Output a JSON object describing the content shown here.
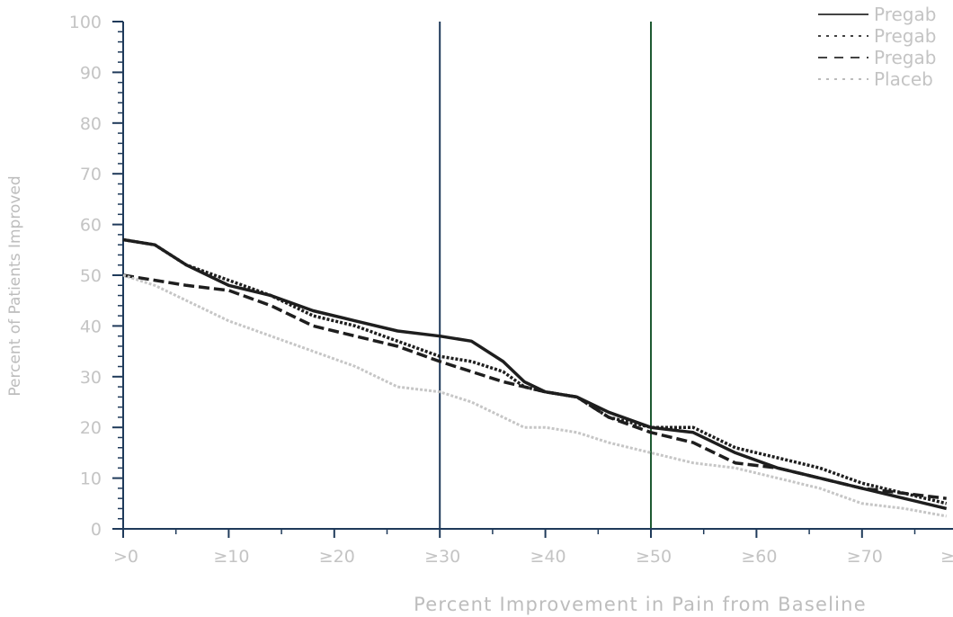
{
  "chart_data": {
    "type": "line",
    "xlabel": "Percent Improvement in Pain from Baseline",
    "ylabel": "Percent of Patients Improved",
    "xlim": [
      0,
      78
    ],
    "ylim": [
      0,
      100
    ],
    "x_ticks": [
      0,
      10,
      20,
      30,
      40,
      50,
      60,
      70,
      80
    ],
    "x_tick_labels": [
      ">0",
      "≥10",
      "≥20",
      "≥30",
      "≥40",
      "≥50",
      "≥60",
      "≥70",
      "≥"
    ],
    "x_minor_ticks": [
      5,
      15,
      25,
      35,
      45,
      55,
      65,
      75
    ],
    "y_ticks": [
      0,
      10,
      20,
      30,
      40,
      50,
      60,
      70,
      80,
      90,
      100
    ],
    "y_tick_labels": [
      "0",
      "10",
      "20",
      "30",
      "40",
      "50",
      "60",
      "70",
      "80",
      "90",
      "100"
    ],
    "y_minor_ticks": [
      2,
      4,
      6,
      8,
      12,
      14,
      16,
      18,
      22,
      24,
      26,
      28,
      32,
      34,
      36,
      38,
      42,
      44,
      46,
      48,
      52,
      54,
      56,
      58,
      62,
      64,
      66,
      68,
      72,
      74,
      76,
      78,
      82,
      84,
      86,
      88,
      92,
      94,
      96,
      98
    ],
    "reference_lines": [
      {
        "x": 30,
        "color": "#1f3a5a"
      },
      {
        "x": 50,
        "color": "#1e5a32"
      }
    ],
    "grid": false,
    "legend_position": "top-right",
    "series": [
      {
        "name": "Pregab",
        "style": "solid",
        "color": "#1e1e1e",
        "x": [
          0,
          3,
          6,
          10,
          14,
          18,
          22,
          26,
          30,
          33,
          36,
          38,
          40,
          43,
          46,
          50,
          54,
          58,
          62,
          66,
          70,
          74,
          78
        ],
        "y": [
          57,
          56,
          52,
          48,
          46,
          43,
          41,
          39,
          38,
          37,
          33,
          29,
          27,
          26,
          23,
          20,
          19,
          15,
          12,
          10,
          8,
          6,
          4
        ]
      },
      {
        "name": "Pregab",
        "style": "dotted",
        "color": "#1e1e1e",
        "x": [
          0,
          3,
          6,
          10,
          14,
          18,
          22,
          26,
          30,
          33,
          36,
          38,
          40,
          43,
          46,
          50,
          54,
          58,
          62,
          66,
          70,
          74,
          78
        ],
        "y": [
          57,
          56,
          52,
          49,
          46,
          42,
          40,
          37,
          34,
          33,
          31,
          28,
          27,
          26,
          22,
          20,
          20,
          16,
          14,
          12,
          9,
          7,
          5
        ]
      },
      {
        "name": "Pregab",
        "style": "dashed",
        "color": "#1e1e1e",
        "x": [
          0,
          3,
          6,
          10,
          14,
          18,
          22,
          26,
          30,
          33,
          36,
          38,
          40,
          43,
          46,
          50,
          54,
          58,
          62,
          66,
          70,
          74,
          78
        ],
        "y": [
          50,
          49,
          48,
          47,
          44,
          40,
          38,
          36,
          33,
          31,
          29,
          28,
          27,
          26,
          22,
          19,
          17,
          13,
          12,
          10,
          8,
          7,
          6
        ]
      },
      {
        "name": "Placeb",
        "style": "dotted",
        "color": "#c6c6c6",
        "x": [
          0,
          3,
          6,
          10,
          14,
          18,
          22,
          26,
          30,
          33,
          36,
          38,
          40,
          43,
          46,
          50,
          54,
          58,
          62,
          66,
          70,
          74,
          78
        ],
        "y": [
          50,
          48,
          45,
          41,
          38,
          35,
          32,
          28,
          27,
          25,
          22,
          20,
          20,
          19,
          17,
          15,
          13,
          12,
          10,
          8,
          5,
          4,
          2.5
        ]
      }
    ]
  }
}
